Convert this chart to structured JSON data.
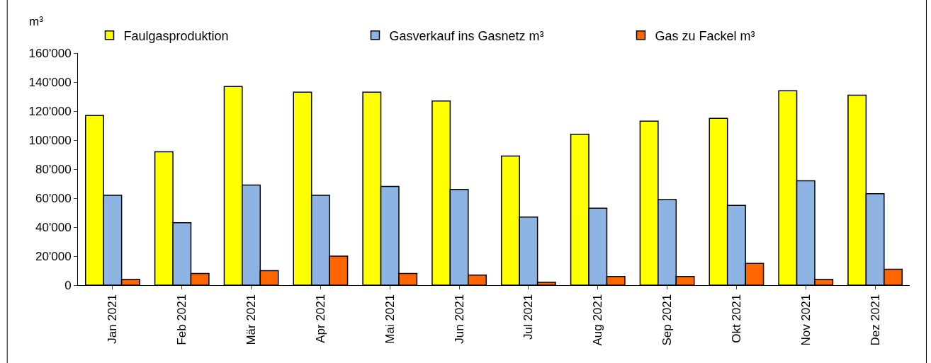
{
  "chart_data": {
    "type": "bar",
    "ylabel": "m³",
    "legend": "top",
    "categories": [
      "Jan 2021",
      "Feb 2021",
      "Mär 2021",
      "Apr 2021",
      "Mai 2021",
      "Jun 2021",
      "Jul 2021",
      "Aug 2021",
      "Sep 2021",
      "Okt 2021",
      "Nov 2021",
      "Dez 2021"
    ],
    "series": [
      {
        "name": "Faulgasproduktion",
        "color": "#ffff00",
        "values": [
          117000,
          92000,
          137000,
          133000,
          133000,
          127000,
          89000,
          104000,
          113000,
          115000,
          134000,
          131000
        ]
      },
      {
        "name": "Gasverkauf ins Gasnetz m³",
        "color": "#8eb4e3",
        "values": [
          62000,
          43000,
          69000,
          62000,
          68000,
          66000,
          47000,
          53000,
          59000,
          55000,
          72000,
          63000
        ]
      },
      {
        "name": "Gas zu Fackel m³",
        "color": "#ff6600",
        "values": [
          4000,
          8000,
          10000,
          20000,
          8000,
          7000,
          2000,
          6000,
          6000,
          15000,
          4000,
          11000
        ]
      }
    ],
    "ylim": [
      0,
      160000
    ],
    "yticks": [
      {
        "value": 0,
        "label": "0"
      },
      {
        "value": 20000,
        "label": "20'000"
      },
      {
        "value": 40000,
        "label": "40'000"
      },
      {
        "value": 60000,
        "label": "60'000"
      },
      {
        "value": 80000,
        "label": "80'000"
      },
      {
        "value": 100000,
        "label": "100'000"
      },
      {
        "value": 120000,
        "label": "120'000"
      },
      {
        "value": 140000,
        "label": "140'000"
      },
      {
        "value": 160000,
        "label": "160'000"
      }
    ]
  }
}
